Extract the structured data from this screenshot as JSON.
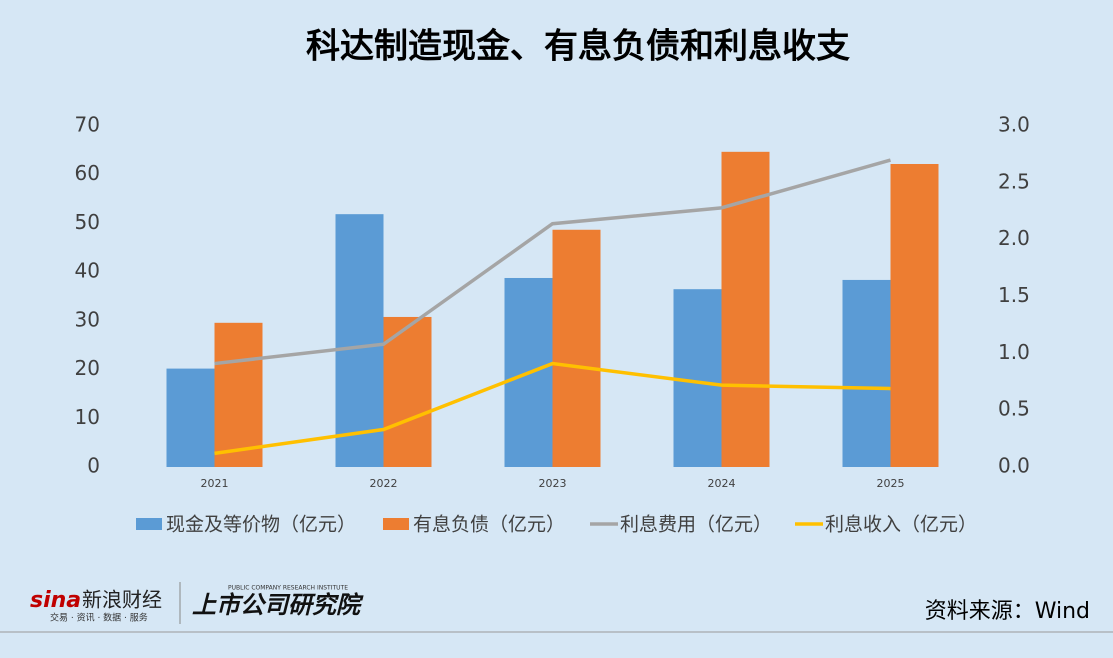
{
  "chart_data": {
    "type": "bar-line",
    "title": "科达制造现金、有息负债和利息收支",
    "categories": [
      "2021",
      "2022",
      "2023",
      "2024",
      "2025"
    ],
    "series": [
      {
        "name": "现金及等价物（亿元）",
        "type": "bar",
        "color": "#5b9bd5",
        "values": [
          20.2,
          51.9,
          38.8,
          36.5,
          38.4
        ]
      },
      {
        "name": "有息负债（亿元）",
        "type": "bar",
        "color": "#ed7d31",
        "values": [
          29.6,
          30.8,
          48.7,
          64.7,
          62.2
        ]
      },
      {
        "name": "利息费用（亿元）",
        "type": "line",
        "axis": "y2",
        "color": "#a5a5a5",
        "values": [
          0.91,
          1.08,
          2.14,
          2.28,
          2.7
        ]
      },
      {
        "name": "利息收入（亿元）",
        "type": "line",
        "axis": "y2",
        "color": "#ffc000",
        "values": [
          0.12,
          0.33,
          0.91,
          0.72,
          0.69
        ]
      }
    ],
    "ylim": [
      0,
      70
    ],
    "yticks": [
      0,
      10,
      20,
      30,
      40,
      50,
      60,
      70
    ],
    "y2lim": [
      0,
      3
    ],
    "y2ticks": [
      {
        "value": 0,
        "label": "0.0"
      },
      0.5,
      {
        "value": 1,
        "label": "1.0"
      },
      1.5,
      {
        "value": 2,
        "label": "2.0"
      },
      2.5,
      {
        "value": 3,
        "label": "3.0"
      }
    ],
    "grid": false,
    "legend": "bottom",
    "source": "资料来源：Wind"
  },
  "footer": {
    "sina": "sina",
    "sina_name": "新浪财经",
    "sina_slogan": "交易 · 资讯 · 数据 · 服务",
    "institute": "上市公司研究院",
    "institute_en": "PUBLIC COMPANY RESEARCH INSTITUTE"
  }
}
